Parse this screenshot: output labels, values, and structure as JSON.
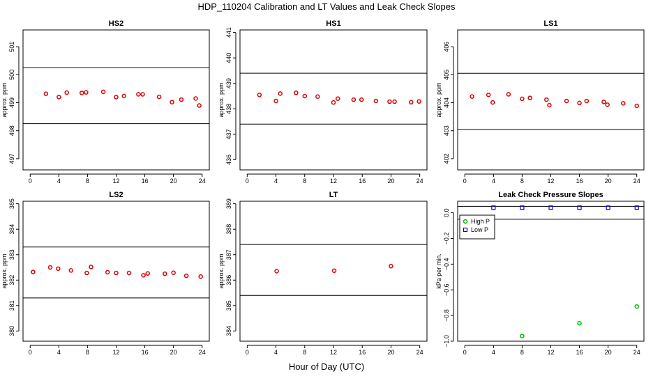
{
  "title": "HDP_110204  Calibration and LT Values and Leak Check Slopes",
  "xlabel": "Hour of Day (UTC)",
  "chart_data": [
    {
      "type": "scatter",
      "title": "HS2",
      "ylabel": "approx. ppm",
      "xlim": [
        -1,
        25
      ],
      "ylim": [
        496.6,
        501.6
      ],
      "xticks": [
        0,
        4,
        8,
        12,
        16,
        20,
        24
      ],
      "yticks": [
        497,
        498,
        499,
        500,
        501
      ],
      "hlines": [
        500.25,
        498.25
      ],
      "color": "#dd0000",
      "marker": "circle",
      "series": [
        {
          "x": [
            2.2,
            4.0,
            5.1,
            7.2,
            7.8,
            10.2,
            12.0,
            13.1,
            15.1,
            15.7,
            18.0,
            19.8,
            21.1,
            23.1,
            23.6
          ],
          "y": [
            499.32,
            499.2,
            499.36,
            499.35,
            499.37,
            499.39,
            499.2,
            499.24,
            499.3,
            499.3,
            499.21,
            499.02,
            499.11,
            499.15,
            498.9
          ]
        }
      ]
    },
    {
      "type": "scatter",
      "title": "HS1",
      "ylabel": "approx. ppm",
      "xlim": [
        -1,
        25
      ],
      "ylim": [
        435.6,
        441.1
      ],
      "xticks": [
        0,
        4,
        8,
        12,
        16,
        20,
        24
      ],
      "yticks": [
        436,
        437,
        438,
        439,
        440,
        441
      ],
      "hlines": [
        439.4,
        437.4
      ],
      "color": "#dd0000",
      "marker": "circle",
      "series": [
        {
          "x": [
            1.7,
            4.0,
            4.6,
            6.8,
            8.0,
            9.8,
            12.0,
            12.6,
            14.8,
            15.9,
            17.9,
            19.8,
            20.5,
            22.8,
            23.9
          ],
          "y": [
            438.55,
            438.31,
            438.6,
            438.63,
            438.5,
            438.48,
            438.25,
            438.4,
            438.36,
            438.36,
            438.31,
            438.28,
            438.28,
            438.26,
            438.29
          ]
        }
      ]
    },
    {
      "type": "scatter",
      "title": "LS1",
      "ylabel": "approx. ppm",
      "xlim": [
        -1,
        25
      ],
      "ylim": [
        401.6,
        406.6
      ],
      "xticks": [
        0,
        4,
        8,
        12,
        16,
        20,
        24
      ],
      "yticks": [
        402,
        403,
        404,
        405,
        406
      ],
      "hlines": [
        405.05,
        403.05
      ],
      "color": "#dd0000",
      "marker": "circle",
      "series": [
        {
          "x": [
            1.0,
            3.3,
            3.9,
            6.1,
            8.0,
            9.1,
            11.4,
            11.8,
            14.2,
            16.0,
            17.0,
            19.4,
            19.9,
            22.1,
            24.0
          ],
          "y": [
            404.22,
            404.28,
            404.01,
            404.3,
            404.14,
            404.17,
            404.11,
            403.91,
            404.06,
            403.99,
            404.06,
            404.03,
            403.93,
            403.98,
            403.89
          ]
        }
      ]
    },
    {
      "type": "scatter",
      "title": "LS2",
      "ylabel": "approx. ppm",
      "xlim": [
        -1,
        25
      ],
      "ylim": [
        379.6,
        385.1
      ],
      "xticks": [
        0,
        4,
        8,
        12,
        16,
        20,
        24
      ],
      "yticks": [
        380,
        381,
        382,
        383,
        384,
        385
      ],
      "hlines": [
        383.3,
        381.3
      ],
      "color": "#dd0000",
      "marker": "circle",
      "series": [
        {
          "x": [
            0.4,
            2.8,
            3.9,
            5.7,
            7.9,
            8.5,
            10.8,
            12.0,
            13.8,
            15.8,
            16.4,
            18.8,
            20.0,
            21.8,
            23.8
          ],
          "y": [
            382.32,
            382.5,
            382.45,
            382.38,
            382.28,
            382.52,
            382.31,
            382.28,
            382.28,
            382.19,
            382.26,
            382.25,
            382.29,
            382.17,
            382.14
          ]
        }
      ]
    },
    {
      "type": "scatter",
      "title": "LT",
      "ylabel": "approx. ppm",
      "xlim": [
        -1,
        25
      ],
      "ylim": [
        383.6,
        389.1
      ],
      "xticks": [
        0,
        4,
        8,
        12,
        16,
        20,
        24
      ],
      "yticks": [
        384,
        385,
        386,
        387,
        388,
        389
      ],
      "hlines": [
        387.4,
        385.4
      ],
      "color": "#dd0000",
      "marker": "circle",
      "series": [
        {
          "x": [
            4.1,
            12.1,
            20.0
          ],
          "y": [
            386.35,
            386.37,
            386.55
          ]
        }
      ]
    },
    {
      "type": "scatter",
      "title": "Leak Check Pressure Slopes",
      "ylabel": "kPa per min.",
      "xlim": [
        -1,
        25
      ],
      "ylim": [
        -1.0,
        0.09
      ],
      "xticks": [
        0,
        4,
        8,
        12,
        16,
        20,
        24
      ],
      "yticks": [
        -1.0,
        -0.8,
        -0.6,
        -0.4,
        -0.2,
        0.0
      ],
      "ytick_labels": [
        "−1.0",
        "−0.8",
        "−0.6",
        "−0.4",
        "−0.2",
        "0.0"
      ],
      "hlines": [
        0.05,
        -0.05
      ],
      "legend": "top-left",
      "series": [
        {
          "name": "High P",
          "color": "#00bb00",
          "marker": "circle",
          "x": [
            8.0,
            16.0,
            24.0
          ],
          "y": [
            -0.96,
            -0.86,
            -0.73
          ]
        },
        {
          "name": "Low P",
          "color": "#0000cc",
          "marker": "square",
          "x": [
            4.0,
            8.0,
            12.0,
            16.0,
            20.0,
            24.0
          ],
          "y": [
            0.04,
            0.04,
            0.04,
            0.04,
            0.04,
            0.04
          ]
        }
      ]
    }
  ]
}
